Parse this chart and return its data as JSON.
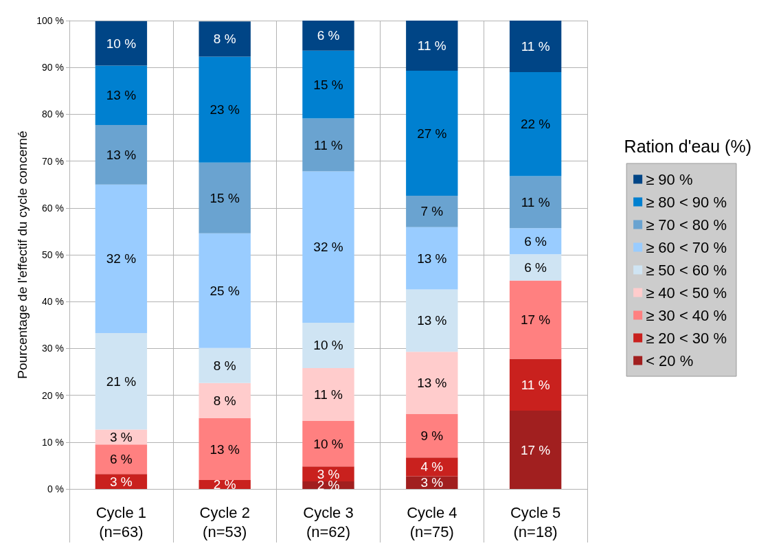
{
  "chart_data": {
    "type": "bar",
    "stacked": true,
    "ylabel": "Pourcentage de l'effectif du cycle concerné",
    "legend_title": "Ration d'eau (%)",
    "legend": "right",
    "grid": true,
    "categories": [
      "Cycle 1\n(n=63)",
      "Cycle 2\n(n=53)",
      "Cycle 3\n(n=62)",
      "Cycle 4\n(n=75)",
      "Cycle 5\n(n=18)"
    ],
    "ylim": [
      0,
      100
    ],
    "yticks": [
      {
        "value": 0,
        "label": "0 %"
      },
      {
        "value": 10,
        "label": "10 %"
      },
      {
        "value": 20,
        "label": "20 %"
      },
      {
        "value": 30,
        "label": "30 %"
      },
      {
        "value": 40,
        "label": "40 %"
      },
      {
        "value": 50,
        "label": "50 %"
      },
      {
        "value": 60,
        "label": "60 %"
      },
      {
        "value": 70,
        "label": "70 %"
      },
      {
        "value": 80,
        "label": "80 %"
      },
      {
        "value": 90,
        "label": "90 %"
      },
      {
        "value": 100,
        "label": "100 %"
      }
    ],
    "series": [
      {
        "name": "< 20 %",
        "color": "#a11f1f",
        "values": [
          0,
          0,
          1.6,
          2.7,
          16.7
        ],
        "value_labels": [
          null,
          null,
          "2 %",
          "3 %",
          "17 %"
        ]
      },
      {
        "name": "≥ 20 < 30 %",
        "color": "#c9211e",
        "values": [
          3.2,
          1.9,
          3.2,
          4.0,
          11.1
        ],
        "value_labels": [
          "3 %",
          "2 %",
          "3 %",
          "4 %",
          "11 %"
        ]
      },
      {
        "name": "≥ 30 < 40 %",
        "color": "#ff8080",
        "values": [
          6.3,
          13.2,
          9.7,
          9.3,
          16.7
        ],
        "value_labels": [
          "6 %",
          "13 %",
          "10 %",
          "9 %",
          "17 %"
        ]
      },
      {
        "name": "≥ 40 < 50 %",
        "color": "#ffcccc",
        "values": [
          3.2,
          7.5,
          11.3,
          13.3,
          0
        ],
        "value_labels": [
          "3 %",
          "8 %",
          "11 %",
          "13 %",
          null
        ]
      },
      {
        "name": "≥ 50 < 60 %",
        "color": "#cfe4f3",
        "values": [
          20.6,
          7.5,
          9.7,
          13.3,
          5.6
        ],
        "value_labels": [
          "21 %",
          "8 %",
          "10 %",
          "13 %",
          "6 %"
        ]
      },
      {
        "name": "≥ 60 < 70 %",
        "color": "#99ccff",
        "values": [
          31.7,
          24.5,
          32.3,
          13.3,
          5.6
        ],
        "value_labels": [
          "32 %",
          "25 %",
          "32 %",
          "13 %",
          "6 %"
        ]
      },
      {
        "name": "≥ 70 < 80 %",
        "color": "#6aa3d0",
        "values": [
          12.7,
          15.1,
          11.3,
          6.7,
          11.1
        ],
        "value_labels": [
          "13 %",
          "15 %",
          "11 %",
          "7 %",
          "11 %"
        ]
      },
      {
        "name": "≥ 80 < 90 %",
        "color": "#0080d0",
        "values": [
          12.7,
          22.6,
          14.5,
          26.7,
          22.2
        ],
        "value_labels": [
          "13 %",
          "23 %",
          "15 %",
          "27 %",
          "22 %"
        ]
      },
      {
        "name": "≥ 90 %",
        "color": "#004586",
        "values": [
          9.5,
          7.5,
          6.4,
          10.7,
          11.0
        ],
        "value_labels": [
          "10 %",
          "8 %",
          "6 %",
          "11 %",
          "11 %"
        ]
      }
    ]
  }
}
